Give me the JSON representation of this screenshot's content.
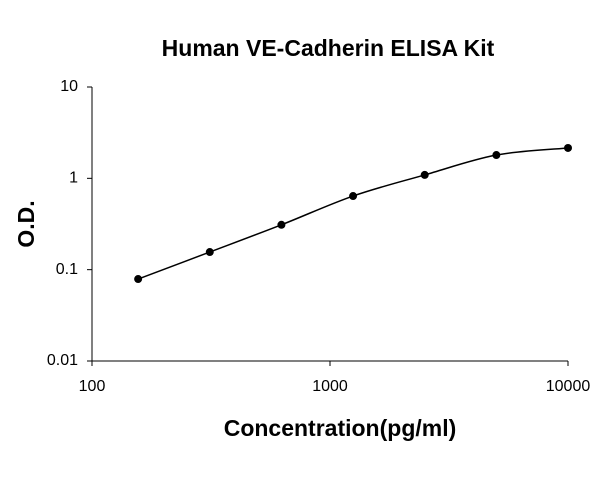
{
  "chart_data": {
    "type": "scatter",
    "title": "Human VE-Cadherin ELISA Kit",
    "x_label": "Concentration(pg/ml)",
    "y_label": "O.D.",
    "x": [
      156.25,
      312.5,
      625,
      1250,
      2500,
      5000,
      10000
    ],
    "series": [
      {
        "values": [
          0.079,
          0.156,
          0.31,
          0.64,
          1.09,
          1.8,
          2.15
        ],
        "color": "#000000"
      }
    ],
    "xscale": "log",
    "yscale": "log",
    "xlim": [
      100,
      10000
    ],
    "ylim": [
      0.01,
      10
    ],
    "xticks": [
      100,
      1000,
      10000
    ],
    "yticks": [
      0.01,
      0.1,
      1,
      10
    ],
    "curve": true
  }
}
